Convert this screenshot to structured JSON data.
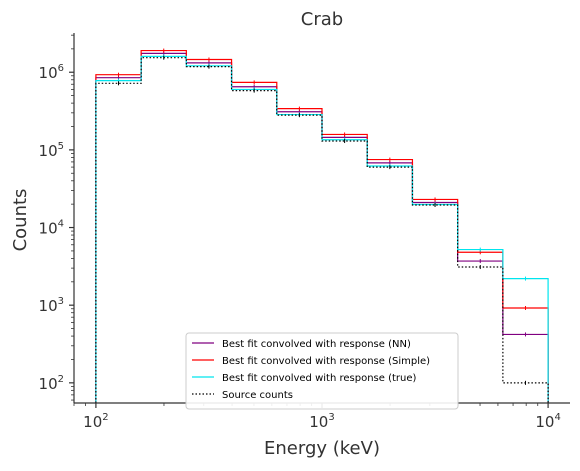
{
  "chart_data": {
    "type": "line",
    "title": "Crab",
    "xlabel": "Energy (keV)",
    "ylabel": "Counts",
    "xscale": "log",
    "yscale": "log",
    "xlim": [
      80,
      12500
    ],
    "ylim": [
      55,
      3200000
    ],
    "grid": false,
    "legend_position": "lower center",
    "x_ticks": [
      {
        "value": 100,
        "base": "10",
        "exp": "2"
      },
      {
        "value": 1000,
        "base": "10",
        "exp": "3"
      },
      {
        "value": 10000,
        "base": "10",
        "exp": "4"
      }
    ],
    "y_ticks": [
      {
        "value": 100,
        "base": "10",
        "exp": "2"
      },
      {
        "value": 1000,
        "base": "10",
        "exp": "3"
      },
      {
        "value": 10000,
        "base": "10",
        "exp": "4"
      },
      {
        "value": 100000,
        "base": "10",
        "exp": "5"
      },
      {
        "value": 1000000,
        "base": "10",
        "exp": "6"
      }
    ],
    "bin_edges": [
      100,
      158.5,
      251.2,
      398.1,
      631,
      1000,
      1585,
      2512,
      3981,
      6310,
      10000
    ],
    "series": [
      {
        "name": "Best fit convolved with response (NN)",
        "color": "#800080",
        "dash": "",
        "values": [
          850000,
          1750000,
          1320000,
          650000,
          310000,
          145000,
          68000,
          21000,
          3700,
          420
        ]
      },
      {
        "name": "Best fit convolved with response (Simple)",
        "color": "#ff0000",
        "dash": "",
        "values": [
          930000,
          1900000,
          1460000,
          740000,
          340000,
          158000,
          75000,
          23000,
          4800,
          920
        ]
      },
      {
        "name": "Best fit convolved with response (true)",
        "color": "#00e5ee",
        "dash": "",
        "values": [
          780000,
          1600000,
          1210000,
          600000,
          285000,
          135000,
          62000,
          19800,
          5200,
          2200
        ]
      },
      {
        "name": "Source counts",
        "color": "#000000",
        "dash": "1.5,2",
        "values": [
          720000,
          1540000,
          1180000,
          580000,
          280000,
          130000,
          60000,
          19500,
          3100,
          100
        ]
      }
    ]
  }
}
